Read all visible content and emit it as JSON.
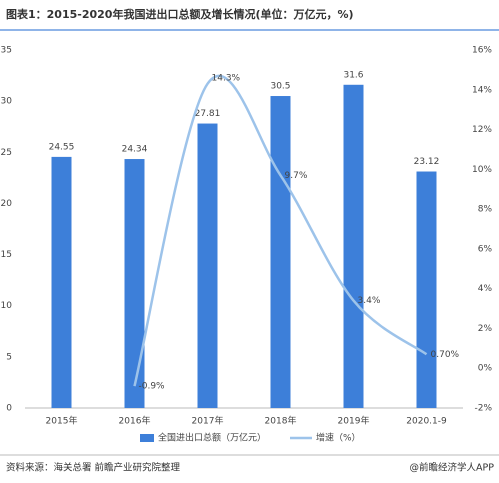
{
  "chart_data": {
    "type": "bar-line",
    "title": "图表1：2015-2020年我国进出口总额及增长情况(单位：万亿元，%)",
    "categories": [
      "2015年",
      "2016年",
      "2017年",
      "2018年",
      "2019年",
      "2020.1-9"
    ],
    "series": [
      {
        "name": "全国进出口总额（万亿元）",
        "type": "bar",
        "color": "#3d7fd9",
        "values": [
          24.55,
          24.34,
          27.81,
          30.5,
          31.6,
          23.12
        ]
      },
      {
        "name": "增速（%）",
        "type": "line",
        "axis": "y2",
        "color": "#9dc3ea",
        "values": [
          null,
          -0.9,
          14.3,
          9.7,
          3.4,
          0.7
        ],
        "value_labels": [
          null,
          "-0.9%",
          "14.3%",
          "9.7%",
          "3.4%",
          "0.70%"
        ]
      }
    ],
    "ylim": [
      0,
      35
    ],
    "yticks": [
      0,
      5,
      10,
      15,
      20,
      25,
      30,
      35
    ],
    "y2lim": [
      -2,
      16
    ],
    "y2ticks": [
      {
        "value": -2,
        "label": "-2%"
      },
      {
        "value": 0,
        "label": "0%"
      },
      {
        "value": 2,
        "label": "2%"
      },
      {
        "value": 4,
        "label": "4%"
      },
      {
        "value": 6,
        "label": "6%"
      },
      {
        "value": 8,
        "label": "8%"
      },
      {
        "value": 10,
        "label": "10%"
      },
      {
        "value": 12,
        "label": "12%"
      },
      {
        "value": 14,
        "label": "14%"
      },
      {
        "value": 16,
        "label": "16%"
      }
    ],
    "source": "资料来源：海关总署  前瞻产业研究院整理",
    "credit": "@前瞻经济学人APP"
  }
}
